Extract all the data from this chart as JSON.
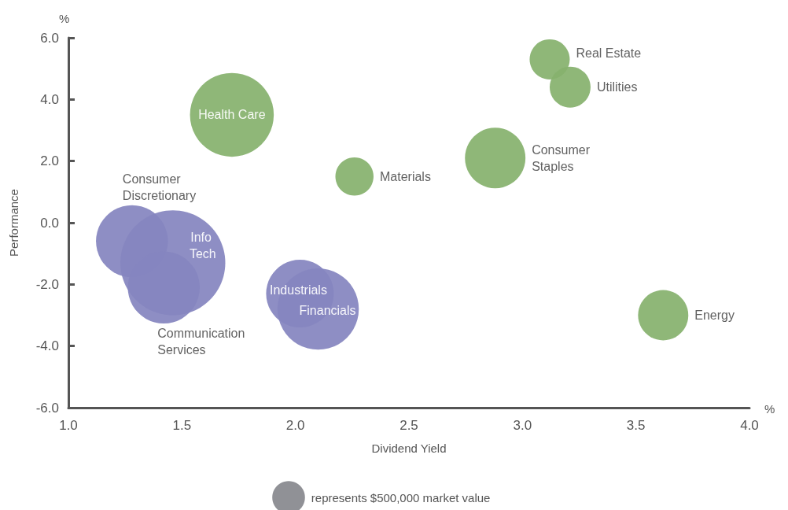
{
  "chart_data": {
    "type": "bubble",
    "xlabel": "Dividend Yield",
    "ylabel": "Performance",
    "annotations": [
      "%",
      "%"
    ],
    "xlim": [
      1,
      4
    ],
    "xticks": [
      {
        "value": 1,
        "label": "1.0"
      },
      {
        "value": 1.5,
        "label": "1.5"
      },
      {
        "value": 2,
        "label": "2.0"
      },
      {
        "value": 2.5,
        "label": "2.5"
      },
      {
        "value": 3,
        "label": "3.0"
      },
      {
        "value": 3.5,
        "label": "3.5"
      },
      {
        "value": 4,
        "label": "4.0"
      }
    ],
    "ylim": [
      -6,
      6
    ],
    "yticks": [
      {
        "value": -6,
        "label": "-6.0"
      },
      {
        "value": -4,
        "label": "-4.0"
      },
      {
        "value": -2,
        "label": "-2.0"
      },
      {
        "value": 0,
        "label": "0.0"
      },
      {
        "value": 2,
        "label": "2.0"
      },
      {
        "value": 4,
        "label": "4.0"
      },
      {
        "value": 6,
        "label": "6.0"
      }
    ],
    "grid": false,
    "marker": "circle",
    "size_legend": [
      {
        "value": 500000,
        "label": "represents $500,000 market value"
      }
    ],
    "series": [
      {
        "name": "Health Care",
        "color": "#86b26e",
        "x": [
          1.72
        ],
        "values": [
          3.5
        ],
        "sizes": [
          3280000
        ]
      },
      {
        "name": "Real Estate",
        "color": "#86b26e",
        "x": [
          3.12
        ],
        "values": [
          5.3
        ],
        "sizes": [
          750000
        ]
      },
      {
        "name": "Utilities",
        "color": "#86b26e",
        "x": [
          3.21
        ],
        "values": [
          4.4
        ],
        "sizes": [
          780000
        ]
      },
      {
        "name": "Consumer Staples",
        "color": "#86b26e",
        "x": [
          2.88
        ],
        "values": [
          2.1
        ],
        "sizes": [
          1710000
        ]
      },
      {
        "name": "Materials",
        "color": "#86b26e",
        "x": [
          2.26
        ],
        "values": [
          1.5
        ],
        "sizes": [
          680000
        ]
      },
      {
        "name": "Energy",
        "color": "#86b26e",
        "x": [
          3.62
        ],
        "values": [
          -3.0
        ],
        "sizes": [
          1180000
        ]
      },
      {
        "name": "Consumer Discretionary",
        "color": "#8585bf",
        "x": [
          1.28
        ],
        "values": [
          -0.6
        ],
        "sizes": [
          2420000
        ]
      },
      {
        "name": "Info Tech",
        "color": "#8585bf",
        "x": [
          1.46
        ],
        "values": [
          -1.3
        ],
        "sizes": [
          5140000
        ]
      },
      {
        "name": "Communication Services",
        "color": "#8585bf",
        "x": [
          1.42
        ],
        "values": [
          -2.1
        ],
        "sizes": [
          2420000
        ]
      },
      {
        "name": "Industrials",
        "color": "#8585bf",
        "x": [
          2.02
        ],
        "values": [
          -2.3
        ],
        "sizes": [
          2140000
        ]
      },
      {
        "name": "Financials",
        "color": "#8585bf",
        "x": [
          2.1
        ],
        "values": [
          -2.8
        ],
        "sizes": [
          3090000
        ]
      }
    ]
  }
}
